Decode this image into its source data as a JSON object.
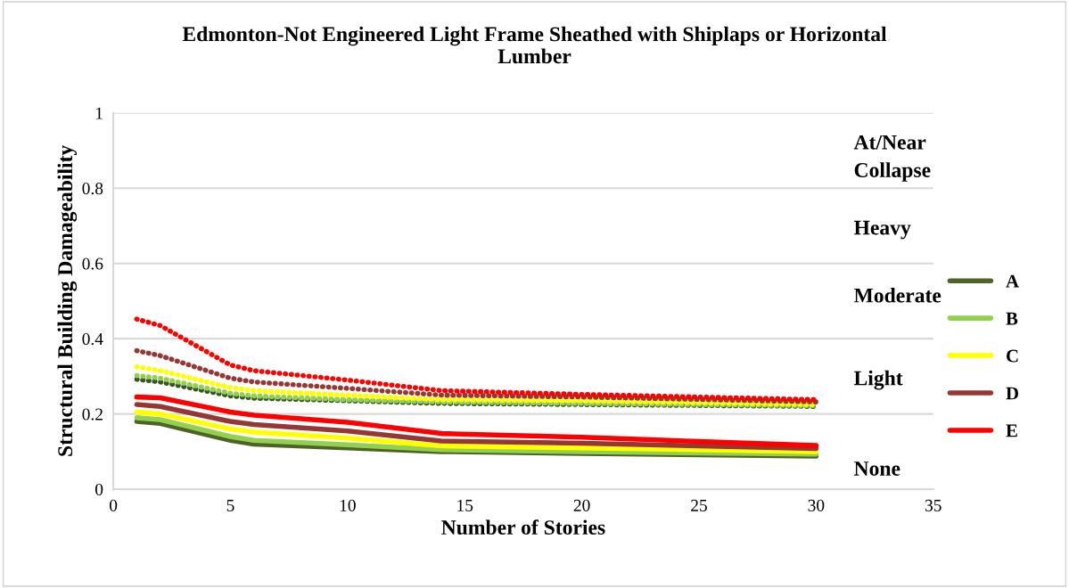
{
  "chart_data": {
    "type": "line",
    "title": "Edmonton-Not Engineered Light Frame Sheathed with Shiplaps or Horizontal Lumber",
    "xlabel": "Number of Stories",
    "ylabel": "Structural Building Damageability",
    "x": [
      1,
      2,
      5,
      6,
      10,
      14,
      20,
      30
    ],
    "series": [
      {
        "name": "A",
        "color": "#4f6228",
        "line_style": "solid",
        "values": [
          0.18,
          0.175,
          0.13,
          0.12,
          0.11,
          0.1,
          0.095,
          0.088
        ]
      },
      {
        "name": "B",
        "color": "#92d050",
        "line_style": "solid",
        "values": [
          0.19,
          0.185,
          0.14,
          0.13,
          0.118,
          0.105,
          0.1,
          0.093
        ]
      },
      {
        "name": "C",
        "color": "#ffff00",
        "line_style": "solid",
        "values": [
          0.205,
          0.2,
          0.16,
          0.152,
          0.136,
          0.115,
          0.11,
          0.1
        ]
      },
      {
        "name": "D",
        "color": "#953735",
        "line_style": "solid",
        "values": [
          0.225,
          0.22,
          0.18,
          0.172,
          0.155,
          0.128,
          0.122,
          0.108
        ]
      },
      {
        "name": "E",
        "color": "#ff0000",
        "line_style": "solid",
        "values": [
          0.245,
          0.243,
          0.205,
          0.197,
          0.178,
          0.148,
          0.138,
          0.116
        ]
      },
      {
        "color": "#375623",
        "line_style": "dotted",
        "values": [
          0.292,
          0.285,
          0.248,
          0.242,
          0.235,
          0.228,
          0.225,
          0.22
        ]
      },
      {
        "color": "#92d050",
        "line_style": "dotted",
        "values": [
          0.302,
          0.295,
          0.255,
          0.248,
          0.238,
          0.232,
          0.228,
          0.222
        ]
      },
      {
        "color": "#ffff00",
        "line_style": "dotted",
        "values": [
          0.325,
          0.315,
          0.27,
          0.262,
          0.25,
          0.238,
          0.235,
          0.225
        ]
      },
      {
        "color": "#953735",
        "line_style": "dotted",
        "values": [
          0.368,
          0.355,
          0.295,
          0.285,
          0.268,
          0.25,
          0.245,
          0.232
        ]
      },
      {
        "color": "#ff0000",
        "line_style": "dotted",
        "values": [
          0.452,
          0.435,
          0.33,
          0.315,
          0.29,
          0.262,
          0.252,
          0.238
        ]
      }
    ],
    "xlim": [
      0,
      35
    ],
    "xticks": [
      0,
      5,
      10,
      15,
      20,
      25,
      30,
      35
    ],
    "ylim": [
      0,
      1
    ],
    "yticks": [
      0,
      0.2,
      0.4,
      0.6,
      0.8,
      1
    ],
    "grid": "y",
    "legend": "right",
    "marker": "none",
    "annotations": [
      "At/Near\nCollapse",
      "Heavy",
      "Moderate",
      "Light",
      "None"
    ]
  }
}
